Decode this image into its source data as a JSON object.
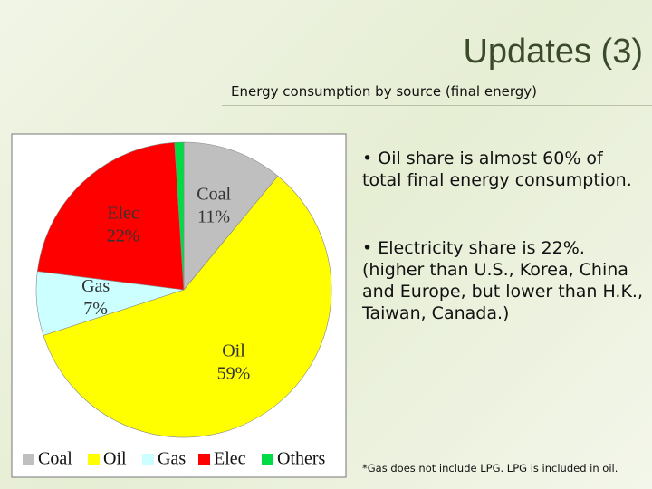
{
  "slide": {
    "title": "Updates (3)",
    "subtitle": "Energy consumption by source (final energy)",
    "bullets": [
      "• Oil share is almost 60% of total final energy consumption.",
      "• Electricity share is 22%. (higher than U.S., Korea, China and Europe, but lower than H.K., Taiwan, Canada.)"
    ],
    "footnote": "*Gas does not include LPG.  LPG is included in oil."
  },
  "chart_data": {
    "type": "pie",
    "categories": [
      "Coal",
      "Oil",
      "Gas",
      "Elec",
      "Others"
    ],
    "values": [
      11,
      59,
      7,
      22,
      1
    ],
    "value_labels": [
      "11%",
      "59%",
      "7%",
      "22%",
      null
    ],
    "colors": [
      "#bfbfbf",
      "#ffff00",
      "#ccffff",
      "#ff0000",
      "#00dd44"
    ],
    "start_angle": 0,
    "direction": "clockwise",
    "legend": "bottom"
  }
}
